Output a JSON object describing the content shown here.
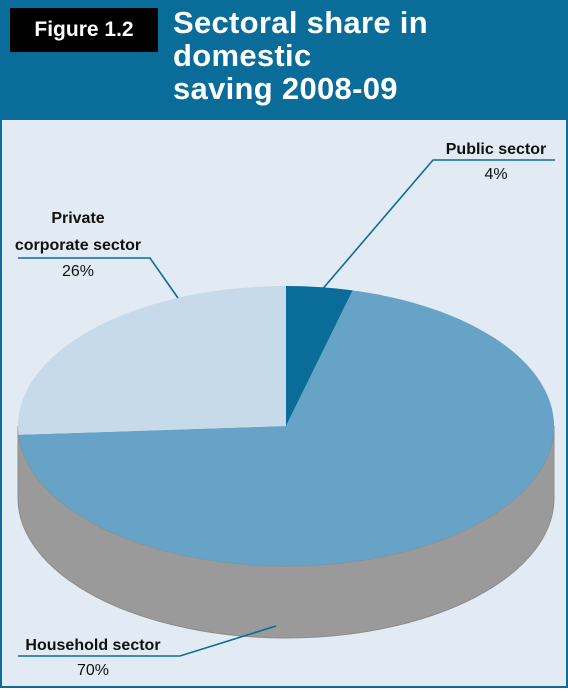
{
  "figure_label": "Figure 1.2",
  "title_line1": "Sectoral share in domestic",
  "title_line2": "saving 2008-09",
  "colors": {
    "frame": "#0a6c98",
    "background": "#e2ebf3",
    "household": "#66a3c6",
    "private": "#c6dae9",
    "public": "#0a6c98",
    "side": "#9a9a9a"
  },
  "chart_data": {
    "type": "pie",
    "style": "3d",
    "title": "Sectoral share in domestic saving 2008-09",
    "slices": [
      {
        "label": "Public sector",
        "value": 4,
        "value_label": "4%"
      },
      {
        "label": "Household sector",
        "value": 70,
        "value_label": "70%"
      },
      {
        "label": "Private corporate sector",
        "value": 26,
        "value_label": "26%"
      }
    ]
  }
}
